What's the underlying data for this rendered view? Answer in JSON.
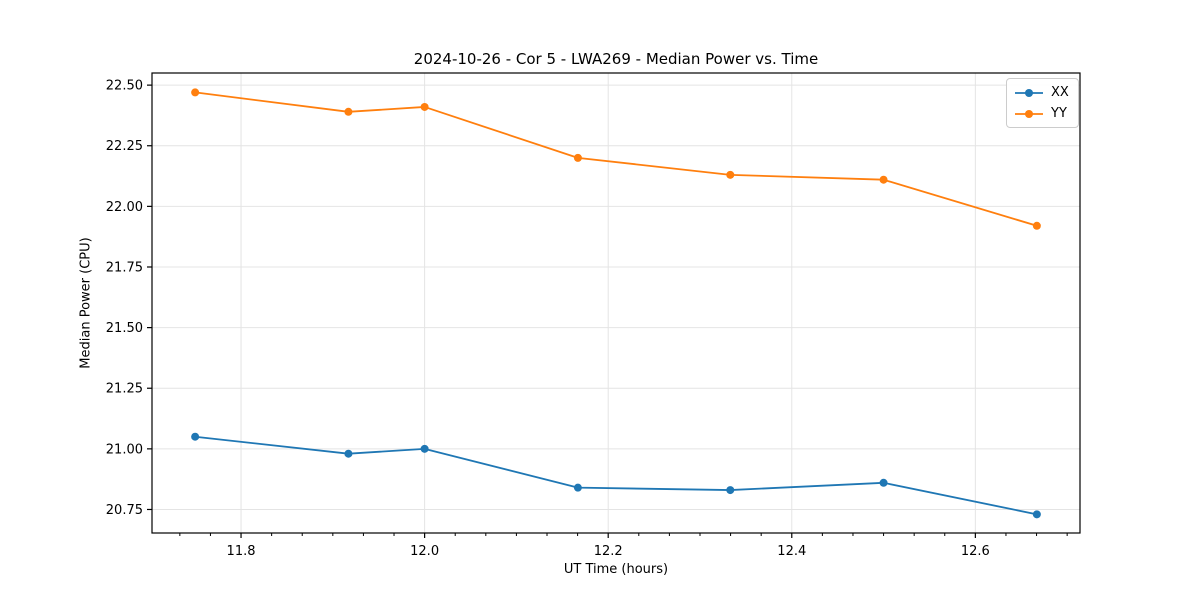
{
  "chart_data": {
    "type": "line",
    "title": "2024-10-26 - Cor 5 - LWA269 - Median Power vs. Time",
    "xlabel": "UT Time (hours)",
    "ylabel": "Median Power (CPU)",
    "x": [
      11.75,
      11.917,
      12.0,
      12.167,
      12.333,
      12.5,
      12.667
    ],
    "series": [
      {
        "name": "XX",
        "color": "#1f77b4",
        "values": [
          21.05,
          20.98,
          21.0,
          20.84,
          20.83,
          20.86,
          20.73
        ]
      },
      {
        "name": "YY",
        "color": "#ff7f0e",
        "values": [
          22.47,
          22.39,
          22.41,
          22.2,
          22.13,
          22.11,
          21.92
        ]
      }
    ],
    "xlim": [
      11.703,
      12.714
    ],
    "ylim": [
      20.653,
      22.55
    ],
    "x_ticks": [
      11.8,
      12.0,
      12.2,
      12.4,
      12.6
    ],
    "x_tick_labels": [
      "11.8",
      "12.0",
      "12.2",
      "12.4",
      "12.6"
    ],
    "y_ticks": [
      20.75,
      21.0,
      21.25,
      21.5,
      21.75,
      22.0,
      22.25,
      22.5
    ],
    "y_tick_labels": [
      "20.75",
      "21.00",
      "21.25",
      "21.50",
      "21.75",
      "22.00",
      "22.25",
      "22.50"
    ],
    "grid": true,
    "legend_position": "top-right",
    "marker": "circle",
    "colors": {
      "grid": "#e4e4e4",
      "spine": "#000000",
      "text": "#000000",
      "background": "#ffffff"
    }
  }
}
